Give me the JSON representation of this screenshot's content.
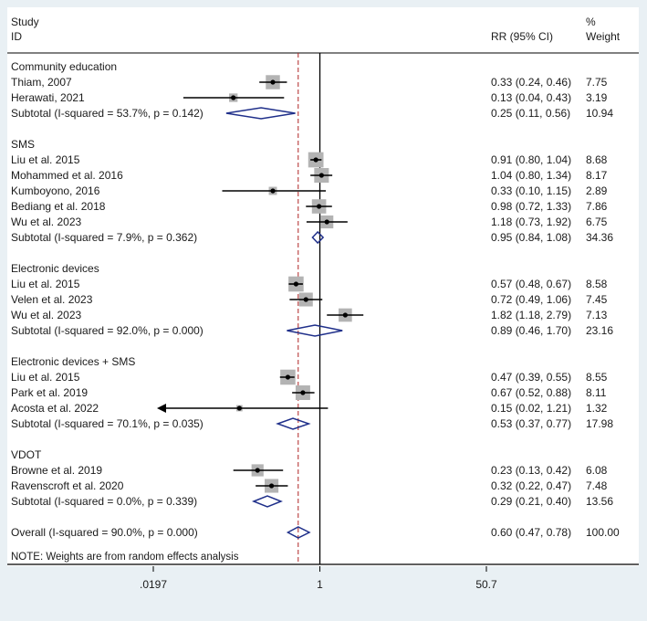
{
  "chart_data": {
    "type": "forest",
    "header": {
      "study_line1": "Study",
      "study_line2": "ID",
      "effect_label": "RR (95% CI)",
      "weight_line1": "%",
      "weight_line2": "Weight"
    },
    "axis": {
      "scale": "log",
      "min": 0.0197,
      "max": 50.7,
      "ticks": [
        0.0197,
        1,
        50.7
      ],
      "tick_labels": [
        ".0197",
        "1",
        "50.7"
      ],
      "null_line": 1,
      "overall_reference": 0.6
    },
    "rows": [
      {
        "kind": "group",
        "label": "Community education"
      },
      {
        "kind": "study",
        "label": "Thiam, 2007",
        "est": 0.33,
        "lo": 0.24,
        "hi": 0.46,
        "ci": "0.33 (0.24, 0.46)",
        "weight": "7.75",
        "w": 7.75
      },
      {
        "kind": "study",
        "label": "Herawati, 2021",
        "est": 0.13,
        "lo": 0.04,
        "hi": 0.43,
        "ci": "0.13 (0.04, 0.43)",
        "weight": "3.19",
        "w": 3.19
      },
      {
        "kind": "subtotal",
        "label": "Subtotal (I-squared = 53.7%, p = 0.142)",
        "est": 0.25,
        "lo": 0.11,
        "hi": 0.56,
        "ci": "0.25 (0.11, 0.56)",
        "weight": "10.94"
      },
      {
        "kind": "blank"
      },
      {
        "kind": "group",
        "label": "SMS"
      },
      {
        "kind": "study",
        "label": "Liu et al. 2015",
        "est": 0.91,
        "lo": 0.8,
        "hi": 1.04,
        "ci": "0.91 (0.80, 1.04)",
        "weight": "8.68",
        "w": 8.68
      },
      {
        "kind": "study",
        "label": "Mohammed et al. 2016",
        "est": 1.04,
        "lo": 0.8,
        "hi": 1.34,
        "ci": "1.04 (0.80, 1.34)",
        "weight": "8.17",
        "w": 8.17
      },
      {
        "kind": "study",
        "label": "Kumboyono, 2016",
        "est": 0.33,
        "lo": 0.1,
        "hi": 1.15,
        "ci": "0.33 (0.10, 1.15)",
        "weight": "2.89",
        "w": 2.89
      },
      {
        "kind": "study",
        "label": "Bediang et al. 2018",
        "est": 0.98,
        "lo": 0.72,
        "hi": 1.33,
        "ci": "0.98 (0.72, 1.33)",
        "weight": "7.86",
        "w": 7.86
      },
      {
        "kind": "study",
        "label": "Wu et al. 2023",
        "est": 1.18,
        "lo": 0.73,
        "hi": 1.92,
        "ci": "1.18 (0.73, 1.92)",
        "weight": "6.75",
        "w": 6.75
      },
      {
        "kind": "subtotal",
        "label": "Subtotal (I-squared = 7.9%, p = 0.362)",
        "est": 0.95,
        "lo": 0.84,
        "hi": 1.08,
        "ci": "0.95 (0.84, 1.08)",
        "weight": "34.36"
      },
      {
        "kind": "blank"
      },
      {
        "kind": "group",
        "label": "Electronic devices"
      },
      {
        "kind": "study",
        "label": "Liu et al. 2015",
        "est": 0.57,
        "lo": 0.48,
        "hi": 0.67,
        "ci": "0.57 (0.48, 0.67)",
        "weight": "8.58",
        "w": 8.58
      },
      {
        "kind": "study",
        "label": "Velen et al. 2023",
        "est": 0.72,
        "lo": 0.49,
        "hi": 1.06,
        "ci": "0.72 (0.49, 1.06)",
        "weight": "7.45",
        "w": 7.45
      },
      {
        "kind": "study",
        "label": "Wu et al. 2023",
        "est": 1.82,
        "lo": 1.18,
        "hi": 2.79,
        "ci": "1.82 (1.18, 2.79)",
        "weight": "7.13",
        "w": 7.13
      },
      {
        "kind": "subtotal",
        "label": "Subtotal (I-squared = 92.0%, p = 0.000)",
        "est": 0.89,
        "lo": 0.46,
        "hi": 1.7,
        "ci": "0.89 (0.46, 1.70)",
        "weight": "23.16"
      },
      {
        "kind": "blank"
      },
      {
        "kind": "group",
        "label": "Electronic devices + SMS"
      },
      {
        "kind": "study",
        "label": "Liu et al. 2015",
        "est": 0.47,
        "lo": 0.39,
        "hi": 0.55,
        "ci": "0.47 (0.39, 0.55)",
        "weight": "8.55",
        "w": 8.55
      },
      {
        "kind": "study",
        "label": "Park et al. 2019",
        "est": 0.67,
        "lo": 0.52,
        "hi": 0.88,
        "ci": "0.67 (0.52, 0.88)",
        "weight": "8.11",
        "w": 8.11
      },
      {
        "kind": "study",
        "label": "Acosta et al. 2022",
        "est": 0.15,
        "lo": 0.02,
        "hi": 1.21,
        "ci": "0.15 (0.02, 1.21)",
        "weight": "1.32",
        "w": 1.32,
        "arrow_left": true
      },
      {
        "kind": "subtotal",
        "label": "Subtotal (I-squared = 70.1%, p = 0.035)",
        "est": 0.53,
        "lo": 0.37,
        "hi": 0.77,
        "ci": "0.53 (0.37, 0.77)",
        "weight": "17.98"
      },
      {
        "kind": "blank"
      },
      {
        "kind": "group",
        "label": "VDOT"
      },
      {
        "kind": "study",
        "label": "Browne et al. 2019",
        "est": 0.23,
        "lo": 0.13,
        "hi": 0.42,
        "ci": "0.23 (0.13, 0.42)",
        "weight": "6.08",
        "w": 6.08
      },
      {
        "kind": "study",
        "label": "Ravenscroft et al. 2020",
        "est": 0.32,
        "lo": 0.22,
        "hi": 0.47,
        "ci": "0.32 (0.22, 0.47)",
        "weight": "7.48",
        "w": 7.48
      },
      {
        "kind": "subtotal",
        "label": "Subtotal (I-squared = 0.0%, p = 0.339)",
        "est": 0.29,
        "lo": 0.21,
        "hi": 0.4,
        "ci": "0.29 (0.21, 0.40)",
        "weight": "13.56"
      },
      {
        "kind": "blank"
      },
      {
        "kind": "overall",
        "label": "Overall (I-squared = 90.0%, p = 0.000)",
        "est": 0.6,
        "lo": 0.47,
        "hi": 0.78,
        "ci": "0.60 (0.47, 0.78)",
        "weight": "100.00"
      }
    ],
    "note": "NOTE: Weights are from random effects analysis",
    "colors": {
      "box": "#b3b3b3",
      "diamond": "#1f2f8a",
      "line": "#000000",
      "reference": "#b02323",
      "background": "#e9f0f4"
    }
  }
}
